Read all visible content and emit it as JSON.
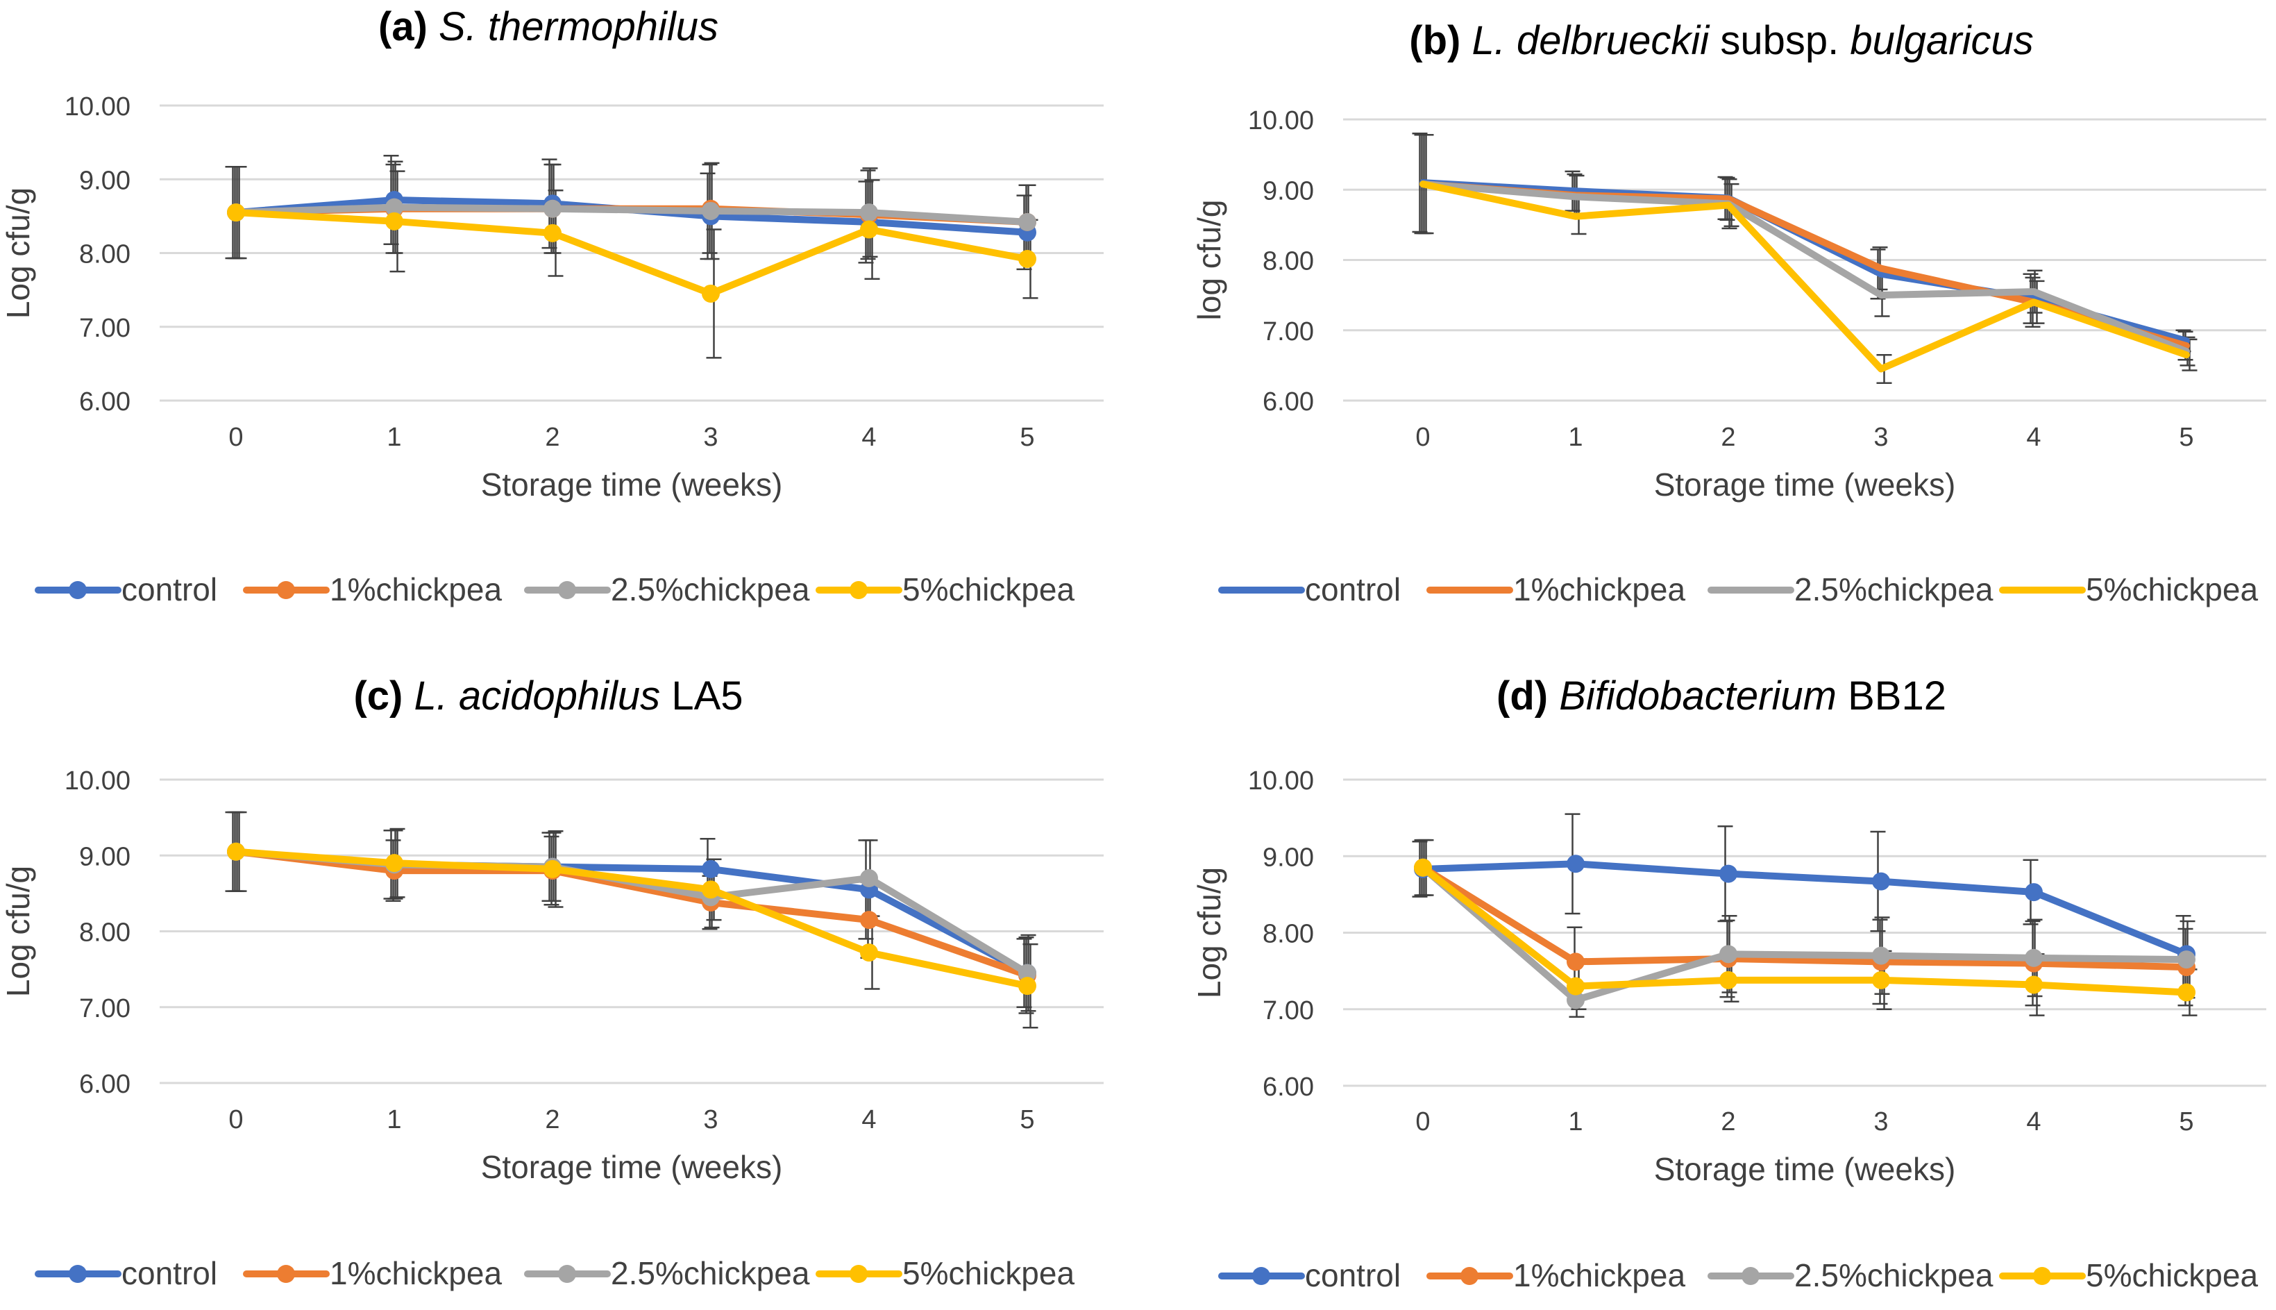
{
  "figure": {
    "description_free": true,
    "legend_swatch_labels": [
      "control",
      "1%chickpea",
      "2.5%chickpea",
      "5%chickpea"
    ]
  },
  "colors": {
    "control": "#4472C4",
    "chickpea_1": "#ED7D31",
    "chickpea_2_5": "#A5A5A5",
    "chickpea_5": "#FFC000",
    "grid": "#d9d9d9",
    "axis_text": "#404040",
    "error_bar": "#404040"
  },
  "chart_data": [
    {
      "id": "a",
      "type": "line",
      "title_prefix": "(a)",
      "title_organism": "S. thermophilus",
      "title_suffix": "",
      "xlabel": "Storage time (weeks)",
      "ylabel": "Log cfu/g",
      "ylim": [
        6,
        10
      ],
      "yticks": [
        "6.00",
        "7.00",
        "8.00",
        "9.00",
        "10.00"
      ],
      "x": [
        "0",
        "1",
        "2",
        "3",
        "4",
        "5"
      ],
      "grid": true,
      "markers": true,
      "legend_position": "bottom",
      "series": [
        {
          "name": "control",
          "values": [
            8.55,
            8.72,
            8.67,
            8.5,
            8.42,
            8.28
          ],
          "errors": [
            0.62,
            0.6,
            0.6,
            0.58,
            0.55,
            0.5
          ]
        },
        {
          "name": "1%chickpea",
          "values": [
            8.55,
            8.6,
            8.6,
            8.6,
            8.52,
            8.42
          ],
          "errors": [
            0.62,
            0.6,
            0.6,
            0.6,
            0.6,
            0.5
          ]
        },
        {
          "name": "2.5%chickpea",
          "values": [
            8.55,
            8.62,
            8.6,
            8.57,
            8.55,
            8.42
          ],
          "errors": [
            0.62,
            0.62,
            0.6,
            0.65,
            0.6,
            0.5
          ]
        },
        {
          "name": "5%chickpea",
          "values": [
            8.55,
            8.43,
            8.27,
            7.45,
            8.32,
            7.92
          ],
          "errors": [
            0.62,
            0.68,
            0.58,
            0.87,
            0.67,
            0.53
          ]
        }
      ]
    },
    {
      "id": "b",
      "type": "line",
      "title_prefix": "(b)",
      "title_organism": "L. delbrueckii",
      "title_middle": "subsp.",
      "title_organism2": "bulgaricus",
      "xlabel": "Storage time (weeks)",
      "ylabel": "log cfu/g",
      "ylim": [
        6,
        10
      ],
      "yticks": [
        "6.00",
        "7.00",
        "8.00",
        "9.00",
        "10.00"
      ],
      "x": [
        "0",
        "1",
        "2",
        "3",
        "4",
        "5"
      ],
      "grid": true,
      "markers": false,
      "legend_position": "bottom",
      "series": [
        {
          "name": "control",
          "values": [
            9.1,
            8.98,
            8.88,
            7.8,
            7.45,
            6.85
          ],
          "errors": [
            0.7,
            0.28,
            0.3,
            0.35,
            0.35,
            0.15
          ]
        },
        {
          "name": "1%chickpea",
          "values": [
            9.08,
            8.92,
            8.87,
            7.88,
            7.4,
            6.78
          ],
          "errors": [
            0.7,
            0.3,
            0.3,
            0.3,
            0.35,
            0.2
          ]
        },
        {
          "name": "2.5%chickpea",
          "values": [
            9.08,
            8.9,
            8.8,
            7.5,
            7.55,
            6.7
          ],
          "errors": [
            0.7,
            0.3,
            0.35,
            0.3,
            0.3,
            0.2
          ]
        },
        {
          "name": "5%chickpea",
          "values": [
            9.08,
            8.62,
            8.78,
            6.45,
            7.4,
            6.65
          ],
          "errors": [
            0.7,
            0.25,
            0.3,
            0.2,
            0.3,
            0.22
          ]
        }
      ]
    },
    {
      "id": "c",
      "type": "line",
      "title_prefix": "(c)",
      "title_organism": "L. acidophilus",
      "title_suffix": "LA5",
      "xlabel": "Storage time (weeks)",
      "ylabel": "Log cfu/g",
      "ylim": [
        6,
        10
      ],
      "yticks": [
        "6.00",
        "7.00",
        "8.00",
        "9.00",
        "10.00"
      ],
      "x": [
        "0",
        "1",
        "2",
        "3",
        "4",
        "5"
      ],
      "grid": true,
      "markers": true,
      "legend_position": "bottom",
      "series": [
        {
          "name": "control",
          "values": [
            9.05,
            8.88,
            8.85,
            8.82,
            8.55,
            7.45
          ],
          "errors": [
            0.52,
            0.45,
            0.45,
            0.4,
            0.65,
            0.45
          ]
        },
        {
          "name": "1%chickpea",
          "values": [
            9.05,
            8.8,
            8.8,
            8.38,
            8.15,
            7.42
          ],
          "errors": [
            0.52,
            0.4,
            0.45,
            0.35,
            0.5,
            0.5
          ]
        },
        {
          "name": "2.5%chickpea",
          "values": [
            9.05,
            8.88,
            8.85,
            8.45,
            8.7,
            7.45
          ],
          "errors": [
            0.52,
            0.45,
            0.45,
            0.4,
            0.5,
            0.5
          ]
        },
        {
          "name": "5%chickpea",
          "values": [
            9.05,
            8.9,
            8.82,
            8.55,
            7.72,
            7.28
          ],
          "errors": [
            0.52,
            0.45,
            0.5,
            0.4,
            0.48,
            0.55
          ]
        }
      ]
    },
    {
      "id": "d",
      "type": "line",
      "title_prefix": "(d)",
      "title_organism": "Bifidobacterium",
      "title_suffix": "BB12",
      "xlabel": "Storage time (weeks)",
      "ylabel": "Log cfu/g",
      "ylim": [
        6,
        10
      ],
      "yticks": [
        "6.00",
        "7.00",
        "8.00",
        "9.00",
        "10.00"
      ],
      "x": [
        "0",
        "1",
        "2",
        "3",
        "4",
        "5"
      ],
      "grid": true,
      "markers": true,
      "legend_position": "bottom",
      "series": [
        {
          "name": "control",
          "values": [
            8.83,
            8.9,
            8.77,
            8.67,
            8.53,
            7.72
          ],
          "errors": [
            0.36,
            0.65,
            0.62,
            0.65,
            0.42,
            0.5
          ]
        },
        {
          "name": "1%chickpea",
          "values": [
            8.85,
            7.62,
            7.66,
            7.62,
            7.6,
            7.55
          ],
          "errors": [
            0.36,
            0.45,
            0.5,
            0.55,
            0.55,
            0.5
          ]
        },
        {
          "name": "2.5%chickpea",
          "values": [
            8.85,
            7.12,
            7.72,
            7.7,
            7.67,
            7.65
          ],
          "errors": [
            0.36,
            0.22,
            0.5,
            0.5,
            0.5,
            0.5
          ]
        },
        {
          "name": "5%chickpea",
          "values": [
            8.85,
            7.3,
            7.38,
            7.38,
            7.32,
            7.22
          ],
          "errors": [
            0.36,
            0.3,
            0.28,
            0.38,
            0.4,
            0.3
          ]
        }
      ]
    }
  ]
}
